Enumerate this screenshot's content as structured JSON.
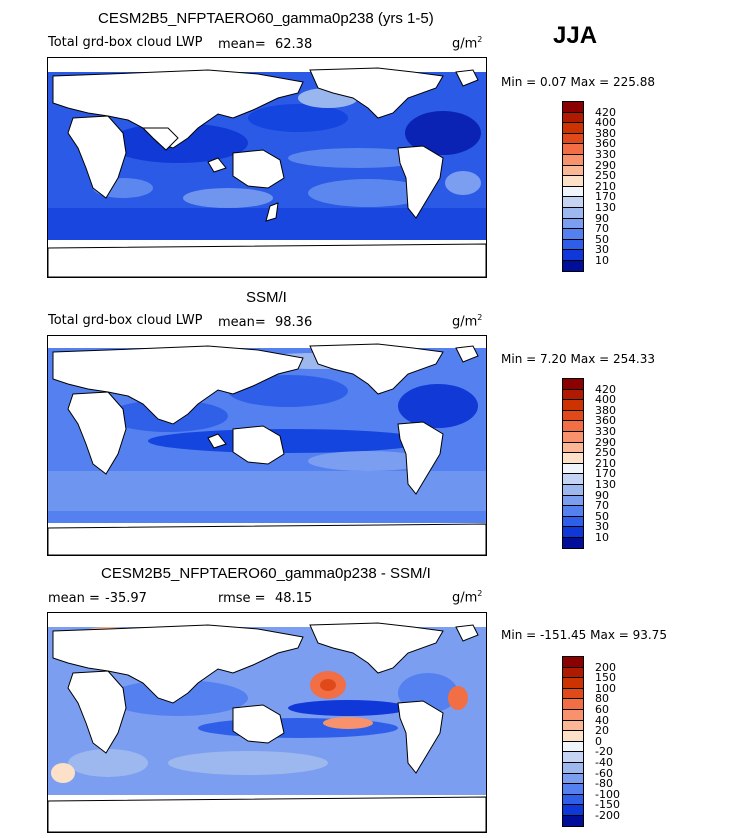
{
  "season": "JJA",
  "units_text": "g/m",
  "units_sup": "2",
  "panels": [
    {
      "title": "CESM2B5_NFPTAERO60_gamma0p238 (yrs 1-5)",
      "subtitle": "Total grd-box cloud LWP",
      "stat1_label": "mean=",
      "stat1_value": "62.38",
      "minmax": "Min =   0.07 Max = 225.88",
      "levels": [
        "420",
        "400",
        "380",
        "360",
        "330",
        "290",
        "250",
        "210",
        "170",
        "130",
        "90",
        "70",
        "50",
        "30",
        "10"
      ],
      "colors": [
        "#8b0000",
        "#b01a00",
        "#cc3300",
        "#e04a1a",
        "#f26e45",
        "#f8926c",
        "#fbb795",
        "#fde0c8",
        "#f0f4fb",
        "#c4d4f2",
        "#9db8ef",
        "#7b9ef0",
        "#5480f0",
        "#2f5fe8",
        "#1037d8",
        "#000e9a"
      ]
    },
    {
      "title": "SSM/I",
      "subtitle": "Total grd-box cloud LWP",
      "stat1_label": "mean=",
      "stat1_value": "98.36",
      "minmax": "Min =   7.20 Max = 254.33",
      "levels": [
        "420",
        "400",
        "380",
        "360",
        "330",
        "290",
        "250",
        "210",
        "170",
        "130",
        "90",
        "70",
        "50",
        "30",
        "10"
      ],
      "colors": [
        "#8b0000",
        "#b01a00",
        "#cc3300",
        "#e04a1a",
        "#f26e45",
        "#f8926c",
        "#fbb795",
        "#fde0c8",
        "#f0f4fb",
        "#c4d4f2",
        "#9db8ef",
        "#7b9ef0",
        "#5480f0",
        "#2f5fe8",
        "#1037d8",
        "#000e9a"
      ]
    },
    {
      "title": "CESM2B5_NFPTAERO60_gamma0p238 - SSM/I",
      "stat1_label": "mean =",
      "stat1_value": "-35.97",
      "stat2_label": "rmse =",
      "stat2_value": "48.15",
      "minmax": "Min = -151.45 Max =  93.75",
      "levels": [
        "200",
        "150",
        "100",
        "80",
        "60",
        "40",
        "20",
        "0",
        "-20",
        "-40",
        "-60",
        "-80",
        "-100",
        "-150",
        "-200"
      ],
      "colors": [
        "#8b0000",
        "#b01a00",
        "#cc3300",
        "#e04a1a",
        "#f26e45",
        "#f8926c",
        "#fbb795",
        "#fde0c8",
        "#f0f4fb",
        "#c4d4f2",
        "#9db8ef",
        "#7b9ef0",
        "#5480f0",
        "#2f5fe8",
        "#1037d8",
        "#000e9a"
      ]
    }
  ]
}
